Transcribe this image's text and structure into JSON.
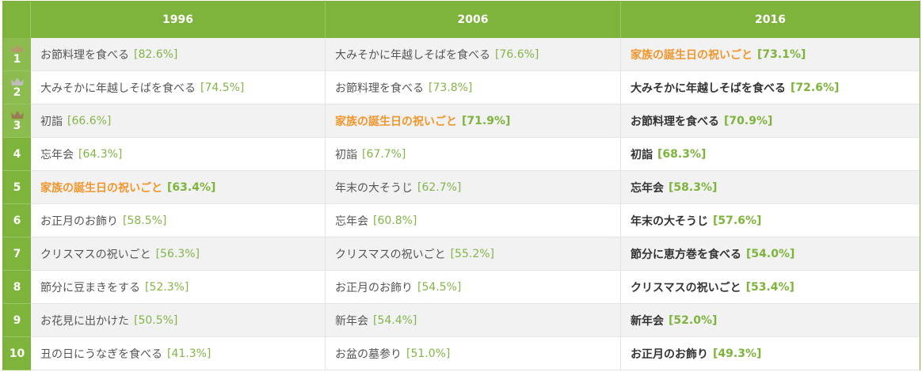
{
  "header": {
    "years": [
      "1996",
      "2006",
      "2016"
    ]
  },
  "colors": {
    "accent_green": "#7eb33c",
    "highlight_orange": "#f0962d",
    "gold_crown": "#b39a6a",
    "silver_crown": "#bdbdbd",
    "bronze_crown": "#9a7b54"
  },
  "rows": [
    {
      "rank": "1",
      "crown": "gold-crown-icon",
      "c1": {
        "text": "お節料理を食べる",
        "pct": "[82.6%]"
      },
      "c2": {
        "text": "大みそかに年越しそばを食べる",
        "pct": "[76.6%]"
      },
      "c3": {
        "text": "家族の誕生日の祝いごと",
        "pct": "[73.1%]"
      }
    },
    {
      "rank": "2",
      "crown": "silver-crown-icon",
      "c1": {
        "text": "大みそかに年越しそばを食べる",
        "pct": "[74.5%]"
      },
      "c2": {
        "text": "お節料理を食べる",
        "pct": "[73.8%]"
      },
      "c3": {
        "text": "大みそかに年越しそばを食べる",
        "pct": "[72.6%]"
      }
    },
    {
      "rank": "3",
      "crown": "bronze-crown-icon",
      "c1": {
        "text": "初詣",
        "pct": "[66.6%]"
      },
      "c2": {
        "text": "家族の誕生日の祝いごと",
        "pct": "[71.9%]"
      },
      "c3": {
        "text": "お節料理を食べる",
        "pct": "[70.9%]"
      }
    },
    {
      "rank": "4",
      "c1": {
        "text": "忘年会",
        "pct": "[64.3%]"
      },
      "c2": {
        "text": "初詣",
        "pct": "[67.7%]"
      },
      "c3": {
        "text": "初詣",
        "pct": "[68.3%]"
      }
    },
    {
      "rank": "5",
      "c1": {
        "text": "家族の誕生日の祝いごと",
        "pct": "[63.4%]"
      },
      "c2": {
        "text": "年末の大そうじ",
        "pct": "[62.7%]"
      },
      "c3": {
        "text": "忘年会",
        "pct": "[58.3%]"
      }
    },
    {
      "rank": "6",
      "c1": {
        "text": "お正月のお飾り",
        "pct": "[58.5%]"
      },
      "c2": {
        "text": "忘年会",
        "pct": "[60.8%]"
      },
      "c3": {
        "text": "年末の大そうじ",
        "pct": "[57.6%]"
      }
    },
    {
      "rank": "7",
      "c1": {
        "text": "クリスマスの祝いごと",
        "pct": "[56.3%]"
      },
      "c2": {
        "text": "クリスマスの祝いごと",
        "pct": "[55.2%]"
      },
      "c3": {
        "text": "節分に恵方巻を食べる",
        "pct": "[54.0%]"
      }
    },
    {
      "rank": "8",
      "c1": {
        "text": "節分に豆まきをする",
        "pct": "[52.3%]"
      },
      "c2": {
        "text": "お正月のお飾り",
        "pct": "[54.5%]"
      },
      "c3": {
        "text": "クリスマスの祝いごと",
        "pct": "[53.4%]"
      }
    },
    {
      "rank": "9",
      "c1": {
        "text": "お花見に出かけた",
        "pct": "[50.5%]"
      },
      "c2": {
        "text": "新年会",
        "pct": "[54.4%]"
      },
      "c3": {
        "text": "新年会",
        "pct": "[52.0%]"
      }
    },
    {
      "rank": "10",
      "c1": {
        "text": "丑の日にうなぎを食べる",
        "pct": "[41.3%]"
      },
      "c2": {
        "text": "お盆の墓参り",
        "pct": "[51.0%]"
      },
      "c3": {
        "text": "お正月のお飾り",
        "pct": "[49.3%]"
      }
    }
  ]
}
